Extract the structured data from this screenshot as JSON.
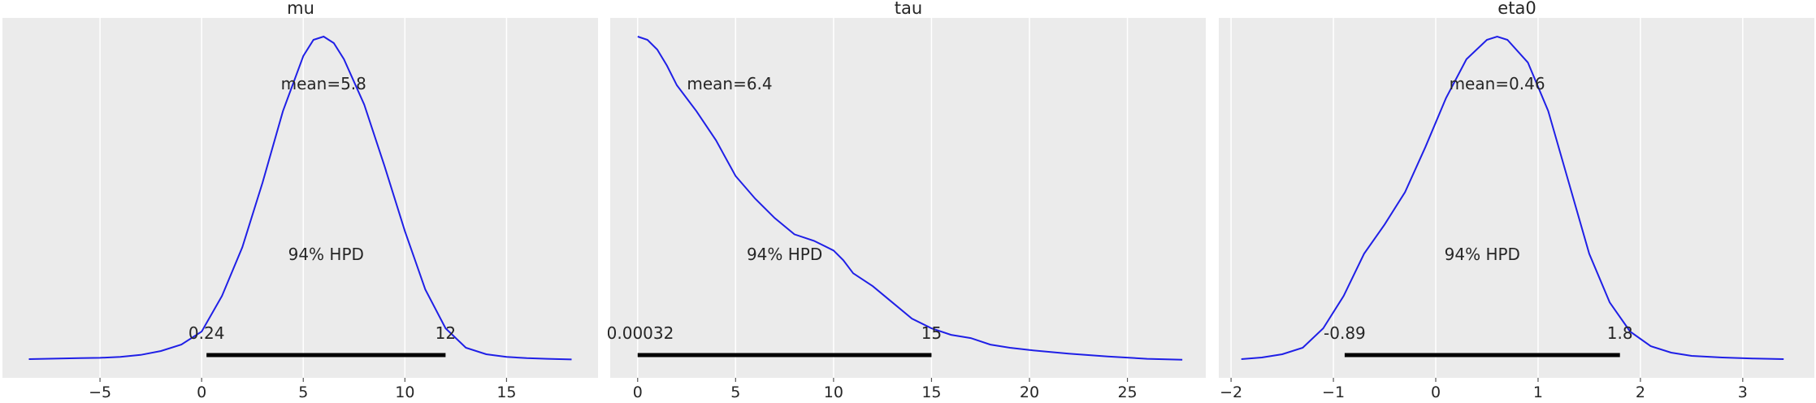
{
  "chart_data": [
    {
      "type": "line",
      "title": "mu",
      "accent_color": "#1f1fe6",
      "xlim": [
        -9.8,
        19.5
      ],
      "xticks": [
        -5,
        0,
        5,
        10,
        15
      ],
      "x_tick_labels": [
        "−5",
        "0",
        "5",
        "10",
        "15"
      ],
      "mean_label": "mean=5.8",
      "hpd_label": "94% HPD",
      "hpd_interval": [
        0.24,
        12
      ],
      "hpd_low_label": "0.24",
      "hpd_high_label": "12",
      "density": {
        "x": [
          -8.5,
          -7,
          -6,
          -5,
          -4,
          -3,
          -2,
          -1,
          0,
          1,
          2,
          3,
          4,
          5,
          5.5,
          6,
          6.5,
          7,
          8,
          9,
          10,
          11,
          12,
          13,
          14,
          15,
          16,
          17,
          18.2
        ],
        "y": [
          0.005,
          0.007,
          0.008,
          0.009,
          0.012,
          0.018,
          0.03,
          0.05,
          0.09,
          0.2,
          0.35,
          0.55,
          0.77,
          0.94,
          0.99,
          1.0,
          0.98,
          0.93,
          0.79,
          0.6,
          0.4,
          0.22,
          0.1,
          0.04,
          0.02,
          0.012,
          0.008,
          0.006,
          0.004
        ]
      }
    },
    {
      "type": "line",
      "title": "tau",
      "accent_color": "#1f1fe6",
      "xlim": [
        -1.4,
        29
      ],
      "xticks": [
        0,
        5,
        10,
        15,
        20,
        25
      ],
      "x_tick_labels": [
        "0",
        "5",
        "10",
        "15",
        "20",
        "25"
      ],
      "mean_label": "mean=6.4",
      "hpd_label": "94% HPD",
      "hpd_interval": [
        0.00032,
        15
      ],
      "hpd_low_label": "0.00032",
      "hpd_high_label": "15",
      "density": {
        "x": [
          0,
          0.5,
          1,
          1.5,
          2,
          3,
          4,
          5,
          6,
          7,
          8,
          9,
          10,
          10.5,
          11,
          12,
          13,
          14,
          15,
          16,
          17,
          18,
          19,
          20,
          22,
          24,
          26,
          27.8
        ],
        "y": [
          1.0,
          0.99,
          0.96,
          0.91,
          0.85,
          0.77,
          0.68,
          0.57,
          0.5,
          0.44,
          0.39,
          0.37,
          0.34,
          0.31,
          0.27,
          0.23,
          0.18,
          0.13,
          0.1,
          0.08,
          0.07,
          0.05,
          0.04,
          0.033,
          0.022,
          0.013,
          0.006,
          0.003
        ]
      }
    },
    {
      "type": "line",
      "title": "eta0",
      "accent_color": "#1f1fe6",
      "xlim": [
        -2.12,
        3.7
      ],
      "xticks": [
        -2,
        -1,
        0,
        1,
        2,
        3
      ],
      "x_tick_labels": [
        "−2",
        "−1",
        "0",
        "1",
        "2",
        "3"
      ],
      "mean_label": "mean=0.46",
      "hpd_label": "94% HPD",
      "hpd_interval": [
        -0.89,
        1.8
      ],
      "hpd_low_label": "-0.89",
      "hpd_high_label": "1.8",
      "density": {
        "x": [
          -1.9,
          -1.7,
          -1.5,
          -1.3,
          -1.1,
          -0.9,
          -0.7,
          -0.5,
          -0.3,
          -0.1,
          0.1,
          0.3,
          0.5,
          0.6,
          0.7,
          0.9,
          1.1,
          1.3,
          1.5,
          1.7,
          1.9,
          2.1,
          2.3,
          2.5,
          2.8,
          3.1,
          3.4
        ],
        "y": [
          0.005,
          0.01,
          0.02,
          0.04,
          0.1,
          0.2,
          0.33,
          0.42,
          0.52,
          0.66,
          0.81,
          0.93,
          0.99,
          1.0,
          0.99,
          0.92,
          0.77,
          0.55,
          0.33,
          0.18,
          0.09,
          0.045,
          0.025,
          0.015,
          0.01,
          0.007,
          0.005
        ]
      }
    }
  ]
}
